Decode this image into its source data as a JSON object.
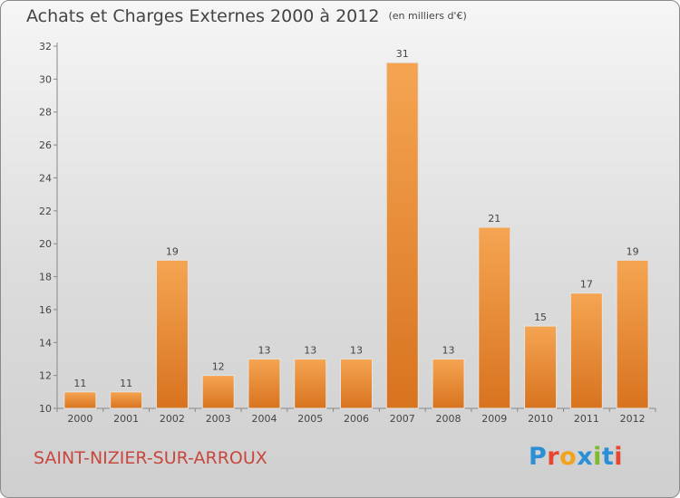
{
  "chart_data": {
    "type": "bar",
    "title": "Achats et Charges Externes 2000 à 2012",
    "subtitle": "(en milliers d'€)",
    "categories": [
      "2000",
      "2001",
      "2002",
      "2003",
      "2004",
      "2005",
      "2006",
      "2007",
      "2008",
      "2009",
      "2010",
      "2011",
      "2012"
    ],
    "values": [
      11,
      11,
      19,
      12,
      13,
      13,
      13,
      31,
      13,
      21,
      15,
      17,
      19
    ],
    "ylim": [
      10,
      32
    ],
    "yticks": [
      10,
      12,
      14,
      16,
      18,
      20,
      22,
      24,
      26,
      28,
      30,
      32
    ],
    "grid": false,
    "legend": "none",
    "bar_color_top": "#f5a552",
    "bar_color_bottom": "#d8731f"
  },
  "footer": {
    "commune": "SAINT-NIZIER-SUR-ARROUX",
    "brand": "Proxiti",
    "brand_colors": [
      "#2a8fd6",
      "#e8462f",
      "#f2a21b",
      "#2a8fd6",
      "#7dbb2e",
      "#2a8fd6",
      "#e8462f"
    ]
  }
}
